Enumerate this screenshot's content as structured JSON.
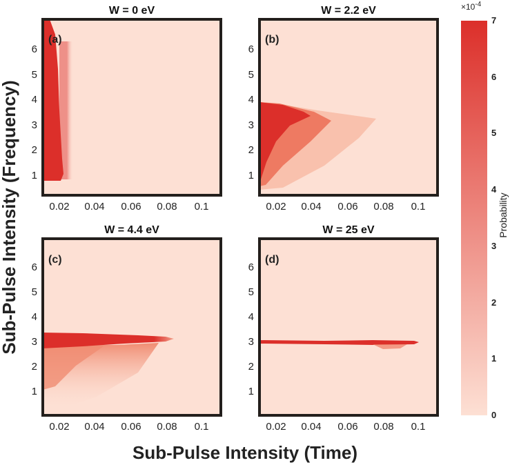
{
  "figure": {
    "xlabel": "Sub-Pulse  Intensity  (Time)",
    "ylabel": "Sub-Pulse  Intensity  (Frequency)"
  },
  "colorbar": {
    "label": "Probability",
    "exponent_base": "×10",
    "exponent_power": "-4",
    "ticks": [
      "0",
      "1",
      "2",
      "3",
      "4",
      "5",
      "6",
      "7"
    ],
    "range": [
      0,
      7
    ],
    "color_low": "#fde0d4",
    "color_high": "#dc2f2a"
  },
  "chart_data": [
    {
      "type": "heatmap",
      "panel": "(a)",
      "title": "W = 0 eV",
      "xlim": [
        0.01,
        0.11
      ],
      "ylim": [
        0,
        7
      ],
      "xticks": [
        "0.02",
        "0.04",
        "0.06",
        "0.08",
        "0.1"
      ],
      "yticks": [
        "1",
        "2",
        "3",
        "4",
        "5",
        "6"
      ],
      "region": "vertical band x 0.01–0.02, y 0.7–7.0 (saturated)"
    },
    {
      "type": "heatmap",
      "panel": "(b)",
      "title": "W = 2.2 eV",
      "xlim": [
        0.01,
        0.11
      ],
      "ylim": [
        0,
        7
      ],
      "xticks": [
        "0.02",
        "0.04",
        "0.06",
        "0.08",
        "0.1"
      ],
      "yticks": [
        "1",
        "2",
        "3",
        "4",
        "5",
        "6"
      ],
      "region": "wedge x 0.01–0.07, y 0.3–3.7 (saturated near x<0.03)"
    },
    {
      "type": "heatmap",
      "panel": "(c)",
      "title": "W = 4.4 eV",
      "xlim": [
        0.01,
        0.11
      ],
      "ylim": [
        0,
        7
      ],
      "xticks": [
        "0.02",
        "0.04",
        "0.06",
        "0.08",
        "0.1"
      ],
      "yticks": [
        "1",
        "2",
        "3",
        "4",
        "5",
        "6"
      ],
      "region": "band y 2.7–3.3 up to x≈0.08, faint tail down to y≈0.3"
    },
    {
      "type": "heatmap",
      "panel": "(d)",
      "title": "W = 25 eV",
      "xlim": [
        0.01,
        0.11
      ],
      "ylim": [
        0,
        7
      ],
      "xticks": [
        "0.02",
        "0.04",
        "0.06",
        "0.08",
        "0.1"
      ],
      "yticks": [
        "1",
        "2",
        "3",
        "4",
        "5",
        "6"
      ],
      "region": "thin line at y≈2.95 from x 0.01–0.097"
    }
  ]
}
